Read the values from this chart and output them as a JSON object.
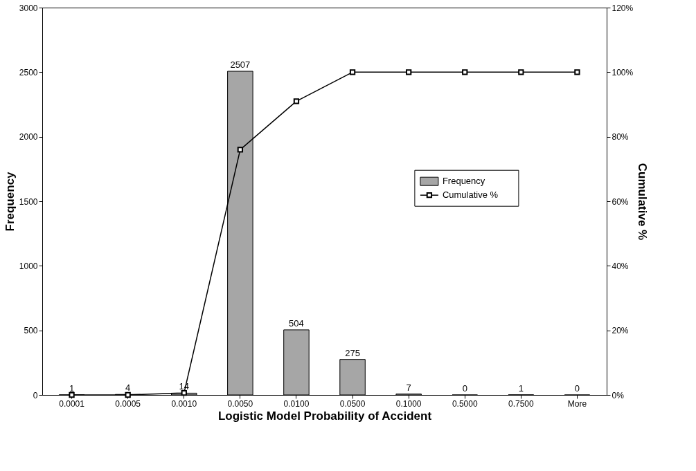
{
  "chart_data": {
    "type": "bar",
    "xlabel": "Logistic Model  Probability of Accident",
    "ylabel": "Frequency",
    "y2label": "Cumulative %",
    "categories": [
      "0.0001",
      "0.0005",
      "0.0010",
      "0.0050",
      "0.0100",
      "0.0500",
      "0.1000",
      "0.5000",
      "0.7500",
      "More"
    ],
    "series": [
      {
        "name": "Frequency",
        "color": "#a6a6a6",
        "values": [
          1,
          4,
          14,
          2507,
          504,
          275,
          7,
          0,
          1,
          0
        ],
        "value_labels": [
          "1",
          "4",
          "14",
          "2507",
          "504",
          "275",
          "7",
          "0",
          "1",
          "0"
        ]
      },
      {
        "name": "Cumulative %",
        "type": "line",
        "axis": "y2",
        "color": "#000000",
        "values": [
          0,
          0,
          0.6,
          76,
          91,
          100,
          100,
          100,
          100,
          100
        ]
      }
    ],
    "ylim": [
      0,
      3000
    ],
    "yticks": [
      0,
      500,
      1000,
      1500,
      2000,
      2500,
      3000
    ],
    "y2lim": [
      0,
      120
    ],
    "y2ticks": [
      {
        "value": 0,
        "label": "0%"
      },
      {
        "value": 20,
        "label": "20%"
      },
      {
        "value": 40,
        "label": "40%"
      },
      {
        "value": 60,
        "label": "60%"
      },
      {
        "value": 80,
        "label": "80%"
      },
      {
        "value": 100,
        "label": "100%"
      },
      {
        "value": 120,
        "label": "120%"
      }
    ],
    "marker": "square",
    "line_style": "solid",
    "legend": "right",
    "grid": false
  }
}
